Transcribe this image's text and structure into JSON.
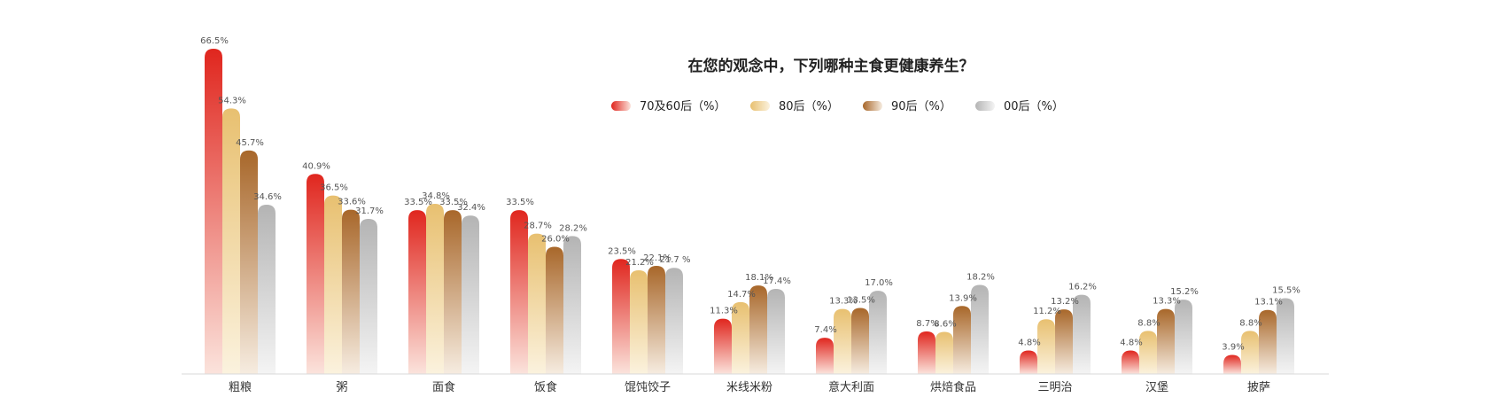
{
  "chart_data": {
    "type": "bar",
    "title": "在您的观念中，下列哪种主食更健康养生？",
    "categories": [
      "粗粮",
      "粥",
      "面食",
      "饭食",
      "馄饨饺子",
      "米线米粉",
      "意大利面",
      "烘焙食品",
      "三明治",
      "汉堡",
      "披萨"
    ],
    "series": [
      {
        "name": "70及60后（%）",
        "color": "#e0261e",
        "values": [
          66.5,
          40.9,
          33.5,
          33.5,
          23.5,
          11.3,
          7.4,
          8.7,
          4.8,
          4.8,
          3.9
        ],
        "labels": [
          "66.5%",
          "40.9%",
          "33.5%",
          "33.5%",
          "23.5%",
          "11.3%",
          "7.4%",
          "8.7%",
          "4.8%",
          "4.8%",
          "3.9%"
        ]
      },
      {
        "name": "80后（%）",
        "color": "#e8c070",
        "values": [
          54.3,
          36.5,
          34.8,
          28.7,
          21.2,
          14.7,
          13.3,
          8.6,
          11.2,
          8.8,
          8.8
        ],
        "labels": [
          "54.3%",
          "36.5%",
          "34.8%",
          "28.7%",
          "21.2%",
          "14.7%",
          "13.3%",
          "8.6%",
          "11.2%",
          "8.8%",
          "8.8%"
        ]
      },
      {
        "name": "90后（%）",
        "color": "#a8672a",
        "values": [
          45.7,
          33.6,
          33.5,
          26.0,
          22.1,
          18.1,
          13.5,
          13.9,
          13.2,
          13.3,
          13.1
        ],
        "labels": [
          "45.7%",
          "33.6%",
          "33.5%",
          "26.0%",
          "22.1%",
          "18.1%",
          "13.5%",
          "13.9%",
          "13.2%",
          "13.3%",
          "13.1%"
        ]
      },
      {
        "name": "00后（%）",
        "color": "#b4b4b4",
        "values": [
          34.6,
          31.7,
          32.4,
          28.2,
          21.7,
          17.4,
          17.0,
          18.2,
          16.2,
          15.2,
          15.5
        ],
        "labels": [
          "34.6%",
          "31.7%",
          "32.4%",
          "28.2%",
          "21.7 %",
          "17.4%",
          "17.0%",
          "18.2%",
          "16.2%",
          "15.2%",
          "15.5%"
        ]
      }
    ],
    "ylim": [
      0,
      70
    ],
    "grid": false,
    "legend": "top-center"
  }
}
